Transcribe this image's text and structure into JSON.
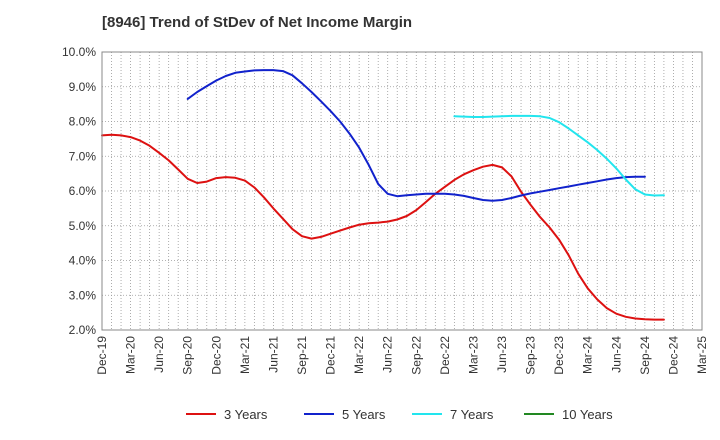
{
  "chart_data": {
    "type": "line",
    "title": "[8946]  Trend of StDev of Net Income Margin",
    "xlabel": "",
    "ylabel": "",
    "x_tick_labels": [
      "Dec-19",
      "Mar-20",
      "Jun-20",
      "Sep-20",
      "Dec-20",
      "Mar-21",
      "Jun-21",
      "Sep-21",
      "Dec-21",
      "Mar-22",
      "Jun-22",
      "Sep-22",
      "Dec-22",
      "Mar-23",
      "Jun-23",
      "Sep-23",
      "Dec-23",
      "Mar-24",
      "Jun-24",
      "Sep-24",
      "Dec-24",
      "Mar-25"
    ],
    "y_tick_labels": [
      "2.0%",
      "3.0%",
      "4.0%",
      "5.0%",
      "6.0%",
      "7.0%",
      "8.0%",
      "9.0%",
      "10.0%"
    ],
    "ylim": [
      2.0,
      10.0
    ],
    "y_unit": "%",
    "grid": true,
    "legend_position": "bottom",
    "series": [
      {
        "name": "3 Years",
        "color": "#dd1111",
        "points": [
          [
            "Dec-19",
            7.6
          ],
          [
            "Jan-20",
            7.62
          ],
          [
            "Feb-20",
            7.6
          ],
          [
            "Mar-20",
            7.55
          ],
          [
            "Apr-20",
            7.45
          ],
          [
            "May-20",
            7.3
          ],
          [
            "Jun-20",
            7.1
          ],
          [
            "Jul-20",
            6.88
          ],
          [
            "Aug-20",
            6.62
          ],
          [
            "Sep-20",
            6.35
          ],
          [
            "Oct-20",
            6.23
          ],
          [
            "Nov-20",
            6.27
          ],
          [
            "Dec-20",
            6.37
          ],
          [
            "Jan-21",
            6.4
          ],
          [
            "Feb-21",
            6.38
          ],
          [
            "Mar-21",
            6.3
          ],
          [
            "Apr-21",
            6.1
          ],
          [
            "May-21",
            5.82
          ],
          [
            "Jun-21",
            5.5
          ],
          [
            "Jul-21",
            5.2
          ],
          [
            "Aug-21",
            4.9
          ],
          [
            "Sep-21",
            4.7
          ],
          [
            "Oct-21",
            4.63
          ],
          [
            "Nov-21",
            4.68
          ],
          [
            "Dec-21",
            4.77
          ],
          [
            "Jan-22",
            4.86
          ],
          [
            "Feb-22",
            4.95
          ],
          [
            "Mar-22",
            5.03
          ],
          [
            "Apr-22",
            5.07
          ],
          [
            "May-22",
            5.09
          ],
          [
            "Jun-22",
            5.12
          ],
          [
            "Jul-22",
            5.18
          ],
          [
            "Aug-22",
            5.28
          ],
          [
            "Sep-22",
            5.45
          ],
          [
            "Oct-22",
            5.68
          ],
          [
            "Nov-22",
            5.92
          ],
          [
            "Dec-22",
            6.12
          ],
          [
            "Jan-23",
            6.32
          ],
          [
            "Feb-23",
            6.48
          ],
          [
            "Mar-23",
            6.6
          ],
          [
            "Apr-23",
            6.7
          ],
          [
            "May-23",
            6.75
          ],
          [
            "Jun-23",
            6.68
          ],
          [
            "Jul-23",
            6.42
          ],
          [
            "Aug-23",
            5.98
          ],
          [
            "Sep-23",
            5.6
          ],
          [
            "Oct-23",
            5.25
          ],
          [
            "Nov-23",
            4.95
          ],
          [
            "Dec-23",
            4.6
          ],
          [
            "Jan-24",
            4.15
          ],
          [
            "Feb-24",
            3.62
          ],
          [
            "Mar-24",
            3.2
          ],
          [
            "Apr-24",
            2.88
          ],
          [
            "May-24",
            2.63
          ],
          [
            "Jun-24",
            2.47
          ],
          [
            "Jul-24",
            2.38
          ],
          [
            "Aug-24",
            2.33
          ],
          [
            "Sep-24",
            2.31
          ],
          [
            "Oct-24",
            2.3
          ],
          [
            "Nov-24",
            2.3
          ]
        ]
      },
      {
        "name": "5 Years",
        "color": "#1122cc",
        "points": [
          [
            "Sep-20",
            8.65
          ],
          [
            "Oct-20",
            8.85
          ],
          [
            "Nov-20",
            9.02
          ],
          [
            "Dec-20",
            9.18
          ],
          [
            "Jan-21",
            9.31
          ],
          [
            "Feb-21",
            9.4
          ],
          [
            "Mar-21",
            9.44
          ],
          [
            "Apr-21",
            9.47
          ],
          [
            "May-21",
            9.48
          ],
          [
            "Jun-21",
            9.48
          ],
          [
            "Jul-21",
            9.45
          ],
          [
            "Aug-21",
            9.33
          ],
          [
            "Sep-21",
            9.1
          ],
          [
            "Oct-21",
            8.85
          ],
          [
            "Nov-21",
            8.58
          ],
          [
            "Dec-21",
            8.3
          ],
          [
            "Jan-22",
            8.0
          ],
          [
            "Feb-22",
            7.65
          ],
          [
            "Mar-22",
            7.25
          ],
          [
            "Apr-22",
            6.75
          ],
          [
            "May-22",
            6.2
          ],
          [
            "Jun-22",
            5.92
          ],
          [
            "Jul-22",
            5.85
          ],
          [
            "Aug-22",
            5.88
          ],
          [
            "Sep-22",
            5.9
          ],
          [
            "Oct-22",
            5.92
          ],
          [
            "Nov-22",
            5.92
          ],
          [
            "Dec-22",
            5.92
          ],
          [
            "Jan-23",
            5.9
          ],
          [
            "Feb-23",
            5.86
          ],
          [
            "Mar-23",
            5.8
          ],
          [
            "Apr-23",
            5.74
          ],
          [
            "May-23",
            5.72
          ],
          [
            "Jun-23",
            5.74
          ],
          [
            "Jul-23",
            5.8
          ],
          [
            "Aug-23",
            5.87
          ],
          [
            "Sep-23",
            5.93
          ],
          [
            "Oct-23",
            5.98
          ],
          [
            "Nov-23",
            6.03
          ],
          [
            "Dec-23",
            6.08
          ],
          [
            "Jan-24",
            6.13
          ],
          [
            "Feb-24",
            6.18
          ],
          [
            "Mar-24",
            6.23
          ],
          [
            "Apr-24",
            6.28
          ],
          [
            "May-24",
            6.33
          ],
          [
            "Jun-24",
            6.37
          ],
          [
            "Jul-24",
            6.4
          ],
          [
            "Aug-24",
            6.41
          ],
          [
            "Sep-24",
            6.41
          ]
        ]
      },
      {
        "name": "7 Years",
        "color": "#22e5ee",
        "points": [
          [
            "Jan-23",
            8.15
          ],
          [
            "Feb-23",
            8.14
          ],
          [
            "Mar-23",
            8.13
          ],
          [
            "Apr-23",
            8.13
          ],
          [
            "May-23",
            8.14
          ],
          [
            "Jun-23",
            8.15
          ],
          [
            "Jul-23",
            8.16
          ],
          [
            "Aug-23",
            8.16
          ],
          [
            "Sep-23",
            8.16
          ],
          [
            "Oct-23",
            8.15
          ],
          [
            "Nov-23",
            8.1
          ],
          [
            "Dec-23",
            7.98
          ],
          [
            "Jan-24",
            7.8
          ],
          [
            "Feb-24",
            7.6
          ],
          [
            "Mar-24",
            7.4
          ],
          [
            "Apr-24",
            7.18
          ],
          [
            "May-24",
            6.93
          ],
          [
            "Jun-24",
            6.65
          ],
          [
            "Jul-24",
            6.33
          ],
          [
            "Aug-24",
            6.05
          ],
          [
            "Sep-24",
            5.9
          ],
          [
            "Oct-24",
            5.87
          ],
          [
            "Nov-24",
            5.88
          ]
        ]
      },
      {
        "name": "10 Years",
        "color": "#228822",
        "points": []
      }
    ]
  }
}
